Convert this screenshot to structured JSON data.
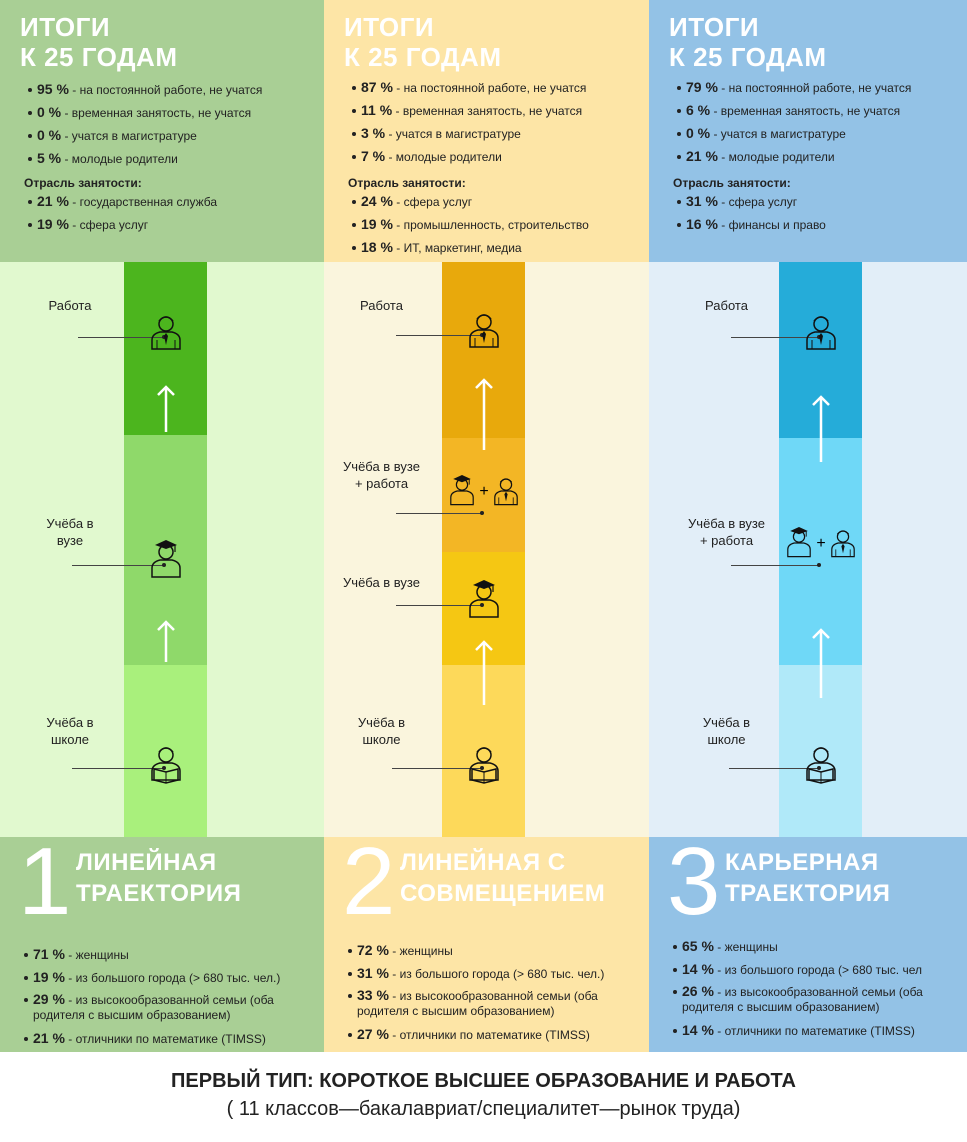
{
  "columns": [
    {
      "color_top": "#a9cf95",
      "color_mid": "#e1f9cf",
      "title": [
        "ИТОГИ",
        "К 25 ГОДАМ"
      ],
      "outcomes": [
        [
          "95 %",
          "на постоянной работе, не учатся"
        ],
        [
          "0 %",
          "временная занятость, не учатся"
        ],
        [
          "0 %",
          "учатся в магистратуре"
        ],
        [
          "5 %",
          "молодые родители"
        ]
      ],
      "industry_label": "Отрасль занятости:",
      "industries": [
        [
          "21 %",
          "государственная служба"
        ],
        [
          "19 %",
          "сфера услуг"
        ]
      ],
      "segment_colors": [
        "#4cb51e",
        "#8fd96a",
        "#a9f07c"
      ],
      "stages": [
        "Работа",
        "Учёба в вузе",
        "Учёба в школе"
      ],
      "number": "1",
      "name": [
        "ЛИНЕЙНАЯ",
        "ТРАЕКТОРИЯ"
      ],
      "profile": [
        [
          "71 %",
          "женщины"
        ],
        [
          "19 %",
          "из большого города (> 680 тыс. чел.)"
        ],
        [
          "29 %",
          "из высокообразованной семьи (оба родителя с высшим образованием)"
        ],
        [
          "21 %",
          "отличники по математике (TIMSS)"
        ]
      ]
    },
    {
      "color_top": "#fde5a6",
      "color_mid": "#faf5dd",
      "title": [
        "ИТОГИ",
        "К 25 ГОДАМ"
      ],
      "outcomes": [
        [
          "87 %",
          "на постоянной работе, не учатся"
        ],
        [
          "11 %",
          "временная занятость, не учатся"
        ],
        [
          "3 %",
          "учатся в магистратуре"
        ],
        [
          "7 %",
          "молодые родители"
        ]
      ],
      "industry_label": "Отрасль занятости:",
      "industries": [
        [
          "24 %",
          "сфера услуг"
        ],
        [
          "19 %",
          "промышленность, строительство"
        ],
        [
          "18 %",
          "ИТ, маркетинг, медиа"
        ]
      ],
      "segment_colors": [
        "#e8a90c",
        "#f3b625",
        "#f5c713",
        "#fdd95a"
      ],
      "stages": [
        "Работа",
        "Учёба в вузе + работа",
        "Учёба в вузе",
        "Учёба в школе"
      ],
      "number": "2",
      "name": [
        "ЛИНЕЙНАЯ С",
        "СОВМЕЩЕНИЕМ"
      ],
      "profile": [
        [
          "72 %",
          "женщины"
        ],
        [
          "31 %",
          "из большого города (> 680 тыс. чел.)"
        ],
        [
          "33 %",
          "из высокообразованной семьи (оба родителя с высшим образованием)"
        ],
        [
          "27 %",
          "отличники по математике (TIMSS)"
        ]
      ]
    },
    {
      "color_top": "#93c2e6",
      "color_mid": "#e2eef8",
      "title": [
        "ИТОГИ",
        "К 25 ГОДАМ"
      ],
      "outcomes": [
        [
          "79 %",
          "на постоянной работе, не учатся"
        ],
        [
          "6 %",
          "временная занятость, не учатся"
        ],
        [
          "0 %",
          "учатся в магистратуре"
        ],
        [
          "21 %",
          "молодые родители"
        ]
      ],
      "industry_label": "Отрасль занятости:",
      "industries": [
        [
          "31 %",
          "сфера услуг"
        ],
        [
          "16 %",
          "финансы и право"
        ]
      ],
      "segment_colors": [
        "#25acd9",
        "#6fd8f7",
        "#b0e9f9"
      ],
      "stages": [
        "Работа",
        "Учёба в вузе + работа",
        "Учёба в школе"
      ],
      "number": "3",
      "name": [
        "КАРЬЕРНАЯ",
        "ТРАЕКТОРИЯ"
      ],
      "profile": [
        [
          "65 %",
          "женщины"
        ],
        [
          "14 %",
          "из большого города (> 680 тыс. чел"
        ],
        [
          "26 %",
          "из высокообразованной семьи (оба родителя с высшим образованием)"
        ],
        [
          "14 %",
          "отличники по математике (TIMSS)"
        ]
      ]
    }
  ],
  "footer": {
    "title": "ПЕРВЫЙ ТИП: КОРОТКОЕ ВЫСШЕЕ ОБРАЗОВАНИЕ И РАБОТА",
    "subtitle": "( 11 классов—бакалавриат/специалитет—рынок труда)"
  }
}
